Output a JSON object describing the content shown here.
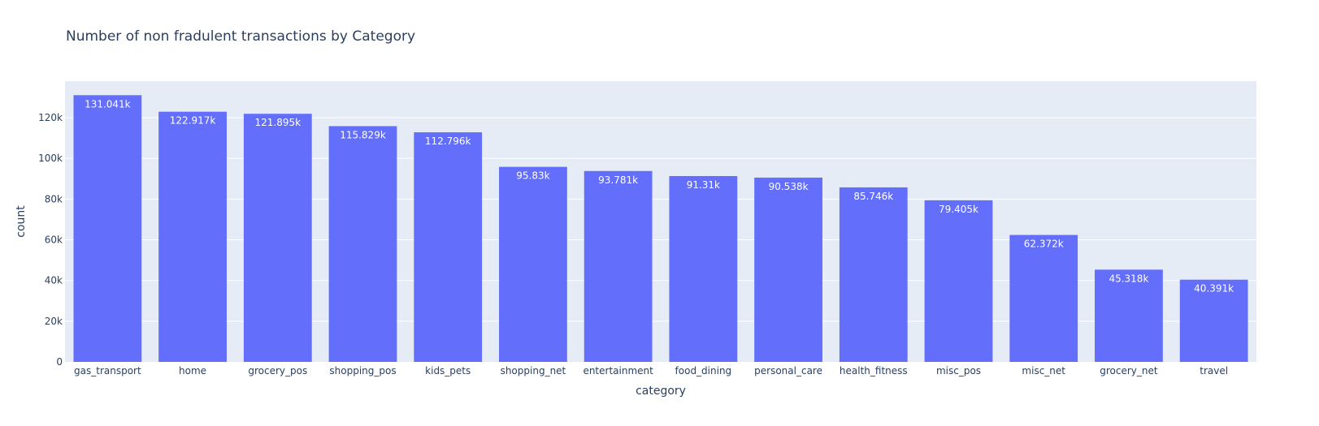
{
  "chart_data": {
    "type": "bar",
    "title": "Number of non fradulent transactions by Category",
    "xlabel": "category",
    "ylabel": "count",
    "categories": [
      "gas_transport",
      "home",
      "grocery_pos",
      "shopping_pos",
      "kids_pets",
      "shopping_net",
      "entertainment",
      "food_dining",
      "personal_care",
      "health_fitness",
      "misc_pos",
      "misc_net",
      "grocery_net",
      "travel"
    ],
    "values": [
      131041,
      122917,
      121895,
      115829,
      112796,
      95830,
      93781,
      91310,
      90538,
      85746,
      79405,
      62372,
      45318,
      40391
    ],
    "value_labels": [
      "131.041k",
      "122.917k",
      "121.895k",
      "115.829k",
      "112.796k",
      "95.83k",
      "93.781k",
      "91.31k",
      "90.538k",
      "85.746k",
      "79.405k",
      "62.372k",
      "45.318k",
      "40.391k"
    ],
    "yticks": [
      0,
      20000,
      40000,
      60000,
      80000,
      100000,
      120000
    ],
    "ytick_labels": [
      "0",
      "20k",
      "40k",
      "60k",
      "80k",
      "100k",
      "120k"
    ],
    "ylim": [
      0,
      137938
    ],
    "grid": true,
    "bar_color": "#636efa",
    "plot_bg": "#e5ecf6",
    "grid_color": "#ffffff"
  }
}
